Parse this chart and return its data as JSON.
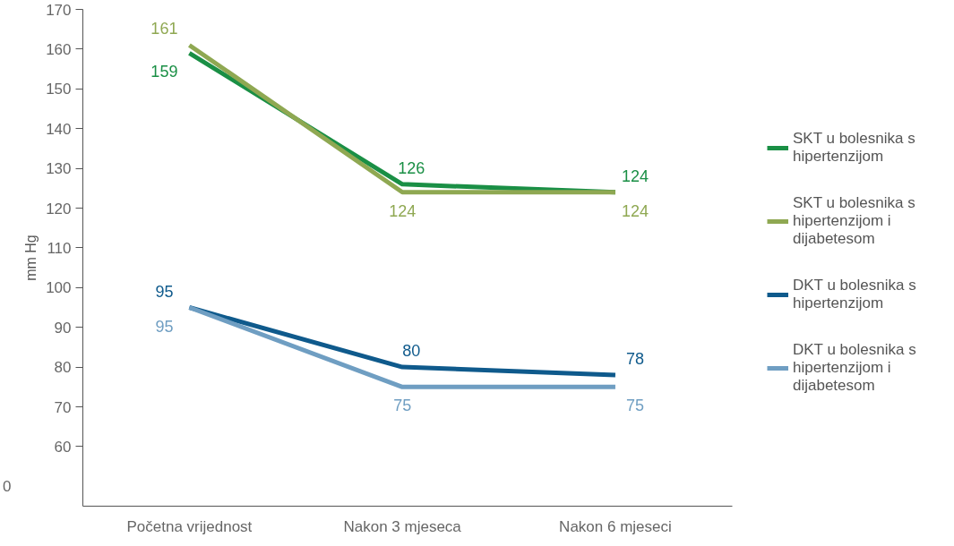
{
  "chart_data": {
    "type": "line",
    "ylabel": "mm Hg",
    "categories": [
      "Početna vrijednost",
      "Nakon 3 mjeseca",
      "Nakon 6 mjeseci"
    ],
    "series": [
      {
        "name": "SKT u bolesnika s hipertenzijom",
        "color": "#1a8f45",
        "values": [
          159,
          126,
          124
        ]
      },
      {
        "name": "SKT u bolesnika s hipertenzijom i dijabetesom",
        "color": "#8fa852",
        "values": [
          161,
          124,
          124
        ]
      },
      {
        "name": "DKT u bolesnika s hipertenzijom",
        "color": "#0f5a8c",
        "values": [
          95,
          80,
          78
        ]
      },
      {
        "name": "DKT u bolesnika s hipertenzijom i dijabetesom",
        "color": "#6f9ec2",
        "values": [
          95,
          75,
          75
        ]
      }
    ],
    "ylim": [
      45,
      170
    ],
    "annotations": [
      "0"
    ],
    "yticks": [
      60,
      70,
      80,
      90,
      100,
      110,
      120,
      130,
      140,
      150,
      160,
      170
    ],
    "data_labels": true,
    "grid": false,
    "legend": "right",
    "marker": "none",
    "line_style": "solid"
  }
}
